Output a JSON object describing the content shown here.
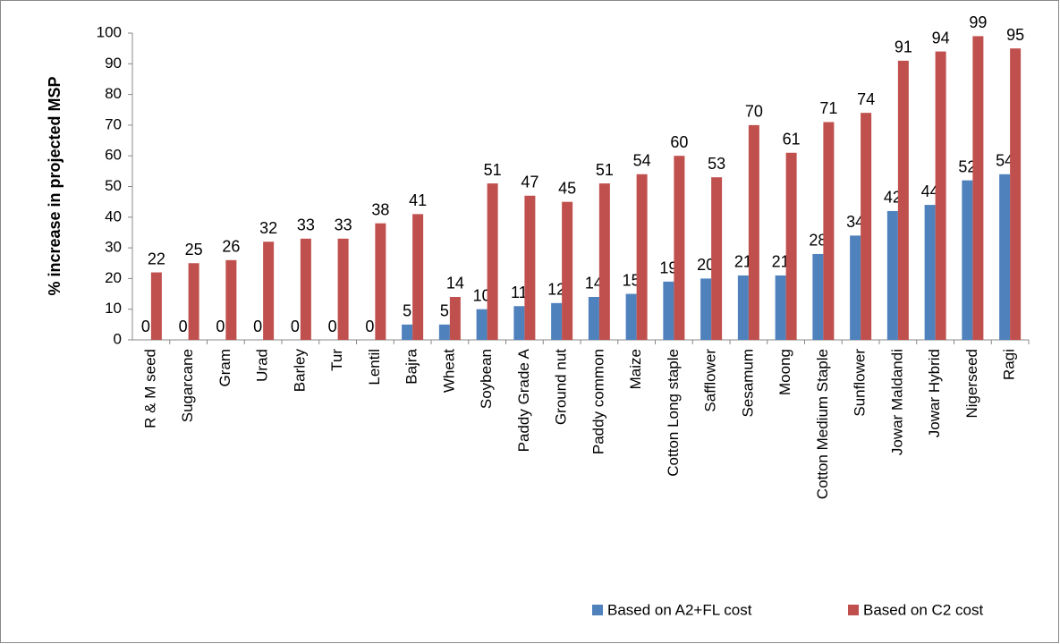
{
  "chart_data": {
    "type": "bar",
    "y_label": "% increase in projected MSP",
    "categories": [
      "R & M seed",
      "Sugarcane",
      "Gram",
      "Urad",
      "Barley",
      "Tur",
      "Lentil",
      "Bajra",
      "Wheat",
      "Soybean",
      "Paddy Grade A",
      "Ground nut",
      "Paddy common",
      "Maize",
      "Cotton Long staple",
      "Safflower",
      "Sesamum",
      "Moong",
      "Cotton Medium Staple",
      "Sunflower",
      "Jowar Maldandi",
      "Jowar Hybrid",
      "Nigerseed",
      "Ragi"
    ],
    "series": [
      {
        "name": "Based on A2+FL cost",
        "color": "#4f81bd",
        "values": [
          0,
          0,
          0,
          0,
          0,
          0,
          0,
          5,
          5,
          10,
          11,
          12,
          14,
          15,
          19,
          20,
          21,
          21,
          28,
          34,
          42,
          44,
          52,
          54
        ]
      },
      {
        "name": "Based on C2 cost",
        "color": "#c0504d",
        "values": [
          22,
          25,
          26,
          32,
          33,
          33,
          38,
          41,
          14,
          51,
          47,
          45,
          51,
          54,
          60,
          53,
          70,
          61,
          71,
          74,
          91,
          94,
          99,
          95
        ]
      }
    ],
    "ylim": [
      0,
      100
    ],
    "yticks": [
      0,
      10,
      20,
      30,
      40,
      50,
      60,
      70,
      80,
      90,
      100
    ],
    "legend": "bottom",
    "grid": false
  }
}
